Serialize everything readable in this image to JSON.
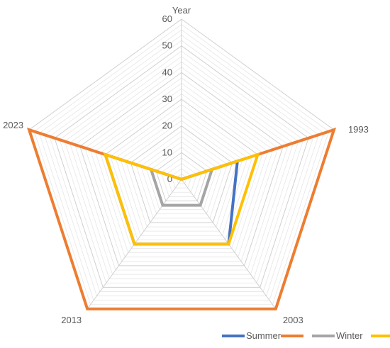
{
  "chart_data": {
    "type": "radar",
    "categories": [
      "Year",
      "1993",
      "2003",
      "2013",
      "2023"
    ],
    "radial_axis": {
      "min": 0,
      "max": 60,
      "major_step": 10,
      "minor_step": 2,
      "ticks": [
        "0",
        "10",
        "20",
        "30",
        "40",
        "50",
        "60"
      ]
    },
    "series": [
      {
        "name": "Summer",
        "color": "#4472C4",
        "values": [
          0,
          22,
          30,
          30,
          30
        ]
      },
      {
        "name": "",
        "color": "#ED7D31",
        "values": [
          0,
          60,
          60,
          60,
          60
        ]
      },
      {
        "name": "Winter",
        "color": "#A5A5A5",
        "values": [
          0,
          12,
          12,
          12,
          12
        ]
      },
      {
        "name": "",
        "color": "#FFC000",
        "values": [
          0,
          30,
          30,
          30,
          30
        ]
      }
    ],
    "grid": true,
    "legend_position": "bottom-right"
  }
}
